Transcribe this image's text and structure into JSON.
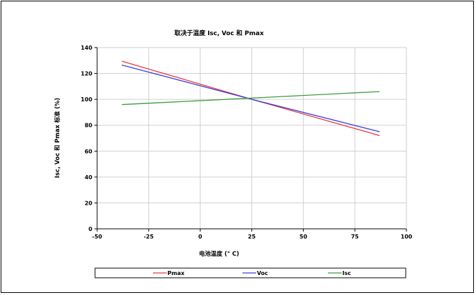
{
  "chart_data": {
    "type": "line",
    "title": "取决于温度 Isc, Voc 和 Pmax",
    "xlabel": "电池温度 (° C)",
    "ylabel": "Isc, Voc 和 Pmax 标准 (%)",
    "xlim": [
      -50,
      100
    ],
    "ylim": [
      0,
      140
    ],
    "xticks": [
      -50,
      -25,
      0,
      25,
      50,
      75,
      100
    ],
    "yticks": [
      0,
      20,
      40,
      60,
      80,
      100,
      120,
      140
    ],
    "grid": true,
    "legend_position": "bottom",
    "series": [
      {
        "name": "Pmax",
        "color": "#e8383d",
        "x": [
          -38,
          25,
          87
        ],
        "y": [
          129.5,
          100,
          72
        ]
      },
      {
        "name": "Voc",
        "color": "#3b3bdb",
        "x": [
          -38,
          25,
          87
        ],
        "y": [
          126.5,
          100,
          75
        ]
      },
      {
        "name": "Isc",
        "color": "#3a9a3a",
        "x": [
          -38,
          25,
          87
        ],
        "y": [
          96,
          101,
          106
        ]
      }
    ]
  }
}
